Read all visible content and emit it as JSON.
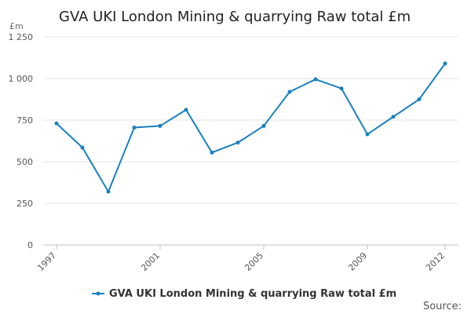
{
  "chart_data": {
    "type": "line",
    "title": "GVA UKI London Mining & quarrying Raw total £m",
    "unit_label": "£m",
    "x": [
      1997,
      1998,
      1999,
      2000,
      2001,
      2002,
      2003,
      2004,
      2005,
      2006,
      2007,
      2008,
      2009,
      2010,
      2011,
      2012
    ],
    "x_tick_labels": [
      "1997",
      "2001",
      "2005",
      "2009",
      "2012"
    ],
    "y_tick_labels": [
      "0",
      "250",
      "500",
      "750",
      "1 000",
      "1 250"
    ],
    "ylim": [
      0,
      1250
    ],
    "grid": true,
    "legend_position": "bottom",
    "series": [
      {
        "name": "GVA UKI London Mining & quarrying Raw total £m",
        "color": "#1a80bf",
        "values": [
          730,
          585,
          320,
          705,
          715,
          812,
          555,
          615,
          715,
          920,
          995,
          940,
          665,
          770,
          875,
          1090
        ]
      }
    ],
    "source_label": "Source:"
  }
}
